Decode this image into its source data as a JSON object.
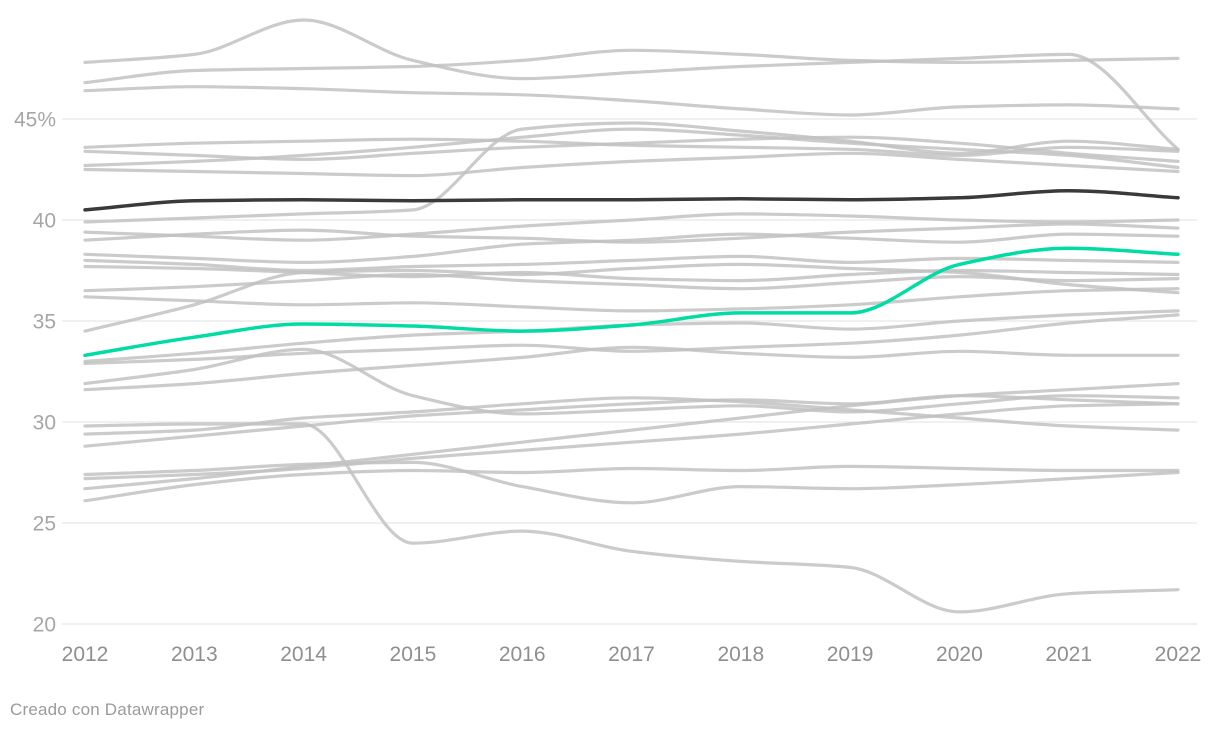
{
  "page": {
    "background": "#ffffff",
    "footer_text": "Creado con Datawrapper"
  },
  "chart_data": {
    "type": "line",
    "title": "",
    "xlabel": "",
    "ylabel": "",
    "x": [
      2012,
      2013,
      2014,
      2015,
      2016,
      2017,
      2018,
      2019,
      2020,
      2021,
      2022
    ],
    "x_tick_labels": [
      "2012",
      "2013",
      "2014",
      "2015",
      "2016",
      "2017",
      "2018",
      "2019",
      "2020",
      "2021",
      "2022"
    ],
    "y_ticks": [
      {
        "value": 45,
        "label": "45%"
      },
      {
        "value": 40,
        "label": "40"
      },
      {
        "value": 35,
        "label": "35"
      },
      {
        "value": 30,
        "label": "30"
      },
      {
        "value": 25,
        "label": "25"
      },
      {
        "value": 20,
        "label": "20"
      }
    ],
    "ylim": [
      20,
      50
    ],
    "grid": "horizontal-only",
    "legend": "none",
    "colors": {
      "context": "#c2c2c2",
      "dark_emphasis": "#3a3a3a",
      "highlight": "#00dca3",
      "gridline": "#e2e2e2",
      "y_tick_text": "#a6a6a6",
      "x_tick_text": "#8f8f8f",
      "footer_text": "#9b9b9b"
    },
    "series": [
      {
        "id": "context-01",
        "role": "context",
        "values": [
          47.8,
          48.2,
          49.9,
          47.9,
          47.0,
          47.3,
          47.6,
          47.8,
          48.0,
          48.2,
          43.5
        ]
      },
      {
        "id": "context-02",
        "role": "context",
        "values": [
          46.8,
          47.4,
          47.5,
          47.6,
          47.9,
          48.4,
          48.2,
          47.9,
          47.8,
          47.9,
          48.0
        ]
      },
      {
        "id": "context-03",
        "role": "context",
        "values": [
          46.4,
          46.6,
          46.5,
          46.3,
          46.2,
          45.9,
          45.5,
          45.2,
          45.6,
          45.7,
          45.5
        ]
      },
      {
        "id": "context-04",
        "role": "context",
        "values": [
          43.6,
          43.8,
          43.9,
          44.0,
          43.9,
          43.7,
          43.6,
          43.5,
          43.2,
          43.6,
          43.4
        ]
      },
      {
        "id": "context-05",
        "role": "context",
        "values": [
          43.4,
          43.2,
          43.0,
          43.3,
          43.6,
          43.8,
          44.0,
          44.1,
          43.8,
          43.3,
          42.9
        ]
      },
      {
        "id": "context-06",
        "role": "context",
        "values": [
          42.7,
          42.9,
          43.2,
          43.6,
          44.1,
          44.5,
          44.2,
          43.8,
          43.5,
          43.2,
          42.6
        ]
      },
      {
        "id": "context-07",
        "role": "context",
        "values": [
          42.5,
          42.4,
          42.3,
          42.2,
          42.6,
          42.9,
          43.1,
          43.3,
          43.0,
          42.7,
          42.4
        ]
      },
      {
        "id": "context-08",
        "role": "context",
        "values": [
          39.9,
          40.1,
          40.3,
          40.5,
          44.5,
          44.8,
          44.4,
          43.9,
          43.3,
          43.9,
          43.5
        ]
      },
      {
        "id": "context-09",
        "role": "context",
        "values": [
          39.4,
          39.2,
          39.0,
          39.3,
          39.7,
          40.0,
          40.3,
          40.2,
          40.0,
          39.9,
          40.0
        ]
      },
      {
        "id": "context-10",
        "role": "context",
        "values": [
          39.0,
          39.3,
          39.5,
          39.2,
          39.1,
          38.9,
          39.1,
          39.4,
          39.6,
          39.8,
          39.6
        ]
      },
      {
        "id": "context-11",
        "role": "context",
        "values": [
          38.3,
          38.1,
          37.9,
          38.2,
          38.8,
          39.0,
          39.3,
          39.1,
          38.9,
          39.3,
          39.2
        ]
      },
      {
        "id": "context-12",
        "role": "context",
        "values": [
          38.0,
          37.8,
          37.5,
          37.7,
          37.8,
          38.0,
          38.2,
          37.9,
          38.1,
          38.0,
          37.9
        ]
      },
      {
        "id": "context-13",
        "role": "context",
        "values": [
          37.7,
          37.6,
          37.4,
          37.2,
          37.4,
          37.1,
          37.0,
          37.3,
          37.5,
          37.4,
          37.3
        ]
      },
      {
        "id": "context-14",
        "role": "context",
        "values": [
          36.5,
          36.7,
          37.0,
          37.3,
          37.0,
          36.8,
          36.6,
          36.9,
          37.2,
          37.0,
          37.1
        ]
      },
      {
        "id": "context-15",
        "role": "context",
        "values": [
          36.2,
          36.0,
          35.8,
          35.9,
          35.7,
          35.5,
          35.6,
          35.8,
          36.2,
          36.5,
          36.6
        ]
      },
      {
        "id": "context-16",
        "role": "context",
        "values": [
          34.5,
          35.8,
          37.4,
          37.5,
          37.3,
          37.6,
          37.8,
          37.6,
          37.4,
          36.8,
          36.4
        ]
      },
      {
        "id": "context-17",
        "role": "context",
        "values": [
          33.0,
          33.4,
          33.9,
          34.3,
          34.5,
          34.8,
          34.9,
          34.6,
          35.0,
          35.3,
          35.5
        ]
      },
      {
        "id": "context-18",
        "role": "context",
        "values": [
          32.9,
          33.1,
          33.4,
          33.6,
          33.8,
          33.5,
          33.7,
          33.9,
          34.3,
          34.9,
          35.3
        ]
      },
      {
        "id": "context-19",
        "role": "context",
        "values": [
          31.9,
          32.6,
          33.6,
          31.3,
          30.4,
          30.6,
          30.8,
          30.5,
          30.9,
          31.3,
          31.2
        ]
      },
      {
        "id": "context-20",
        "role": "context",
        "values": [
          31.6,
          31.9,
          32.4,
          32.8,
          33.2,
          33.7,
          33.4,
          33.2,
          33.5,
          33.3,
          33.3
        ]
      },
      {
        "id": "context-21",
        "role": "context",
        "values": [
          29.8,
          29.9,
          29.9,
          24.0,
          24.6,
          23.6,
          23.1,
          22.8,
          20.6,
          21.5,
          21.7
        ]
      },
      {
        "id": "context-22",
        "role": "context",
        "values": [
          29.4,
          29.6,
          30.2,
          30.5,
          30.9,
          31.2,
          31.0,
          30.6,
          30.2,
          29.8,
          29.6
        ]
      },
      {
        "id": "context-23",
        "role": "context",
        "values": [
          28.8,
          29.3,
          29.8,
          30.3,
          30.6,
          30.9,
          31.1,
          30.9,
          31.3,
          31.1,
          30.9
        ]
      },
      {
        "id": "context-24",
        "role": "context",
        "values": [
          27.4,
          27.6,
          27.9,
          28.0,
          26.8,
          26.0,
          26.8,
          26.7,
          26.9,
          27.2,
          27.5
        ]
      },
      {
        "id": "context-25",
        "role": "context",
        "values": [
          27.2,
          27.4,
          27.7,
          28.2,
          28.6,
          29.0,
          29.4,
          29.9,
          30.4,
          30.8,
          30.9
        ]
      },
      {
        "id": "context-26",
        "role": "context",
        "values": [
          26.7,
          27.2,
          27.8,
          28.4,
          29.0,
          29.6,
          30.2,
          30.8,
          31.3,
          31.6,
          31.9
        ]
      },
      {
        "id": "context-27",
        "role": "context",
        "values": [
          26.1,
          26.9,
          27.4,
          27.6,
          27.5,
          27.7,
          27.6,
          27.8,
          27.7,
          27.6,
          27.6
        ]
      },
      {
        "id": "dark-emphasis",
        "role": "dark_emphasis",
        "values": [
          40.5,
          40.95,
          41.0,
          40.95,
          41.0,
          41.0,
          41.05,
          41.0,
          41.1,
          41.45,
          41.1
        ]
      },
      {
        "id": "highlight",
        "role": "highlight",
        "values": [
          33.3,
          34.2,
          34.85,
          34.75,
          34.5,
          34.8,
          35.4,
          35.4,
          37.8,
          38.6,
          38.3
        ]
      }
    ]
  }
}
